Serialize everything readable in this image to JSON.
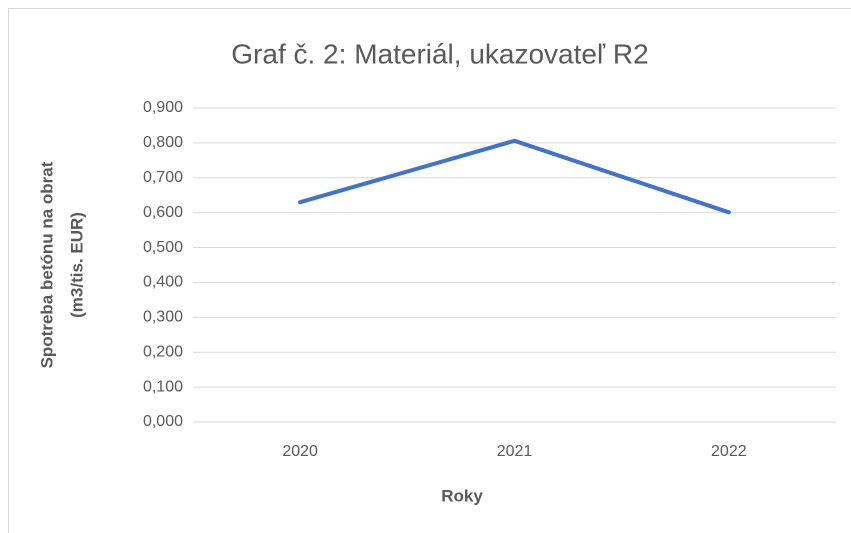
{
  "chart_data": {
    "type": "line",
    "title": "Graf č. 2: Materiál, ukazovateľ R2",
    "x_label": "Roky",
    "y_label": [
      "Spotreba betónu na obrat",
      "(m3/tis. EUR)"
    ],
    "categories": [
      "2020",
      "2021",
      "2022"
    ],
    "series": [
      {
        "name": "R2",
        "color": "#4472c4",
        "values": [
          0.63,
          0.806,
          0.601
        ]
      }
    ],
    "ylim": [
      0,
      0.9
    ],
    "yticks": [
      {
        "value": 0,
        "label": "0,000"
      },
      {
        "value": 0.1,
        "label": "0,100"
      },
      {
        "value": 0.2,
        "label": "0,200"
      },
      {
        "value": 0.3,
        "label": "0,300"
      },
      {
        "value": 0.4,
        "label": "0,400"
      },
      {
        "value": 0.5,
        "label": "0,500"
      },
      {
        "value": 0.6,
        "label": "0,600"
      },
      {
        "value": 0.7,
        "label": "0,700"
      },
      {
        "value": 0.8,
        "label": "0,800"
      },
      {
        "value": 0.9,
        "label": "0,900"
      }
    ],
    "grid": true
  }
}
